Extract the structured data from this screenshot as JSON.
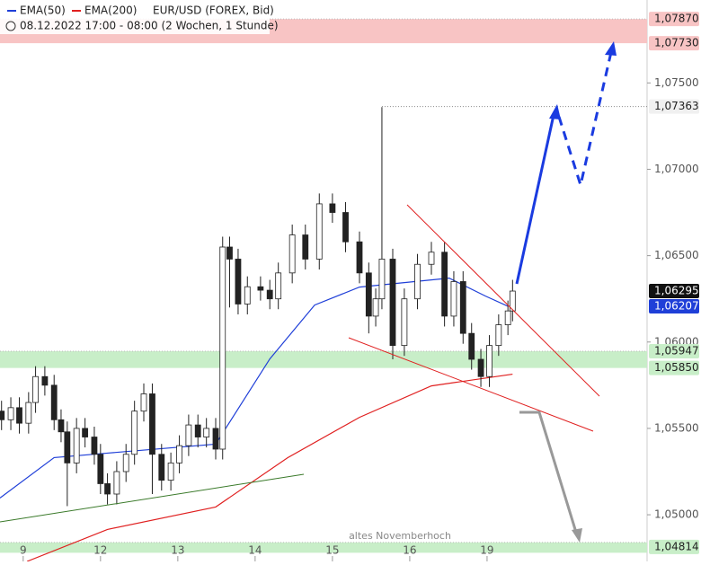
{
  "chart_data": {
    "type": "candlestick",
    "title": "EUR/USD (FOREX, Bid)",
    "subtitle": "08.12.2022 17:00 - 08:00 (2 Wochen, 1 Stunde)",
    "annotation": "altes Novemberhoch",
    "xlim": [
      -0.3,
      8.07
    ],
    "ylim": [
      1.0473,
      1.0798
    ],
    "xticks": [
      {
        "value": 0,
        "label": "9"
      },
      {
        "value": 1,
        "label": "12"
      },
      {
        "value": 2,
        "label": "13"
      },
      {
        "value": 3,
        "label": "14"
      },
      {
        "value": 4,
        "label": "15"
      },
      {
        "value": 5,
        "label": "16"
      },
      {
        "value": 6,
        "label": "19"
      }
    ],
    "yticks": [
      {
        "value": 1.05,
        "label": "1,05000"
      },
      {
        "value": 1.055,
        "label": "1,05500"
      },
      {
        "value": 1.06,
        "label": "1,06000"
      },
      {
        "value": 1.065,
        "label": "1,06500"
      },
      {
        "value": 1.07,
        "label": "1,07000"
      },
      {
        "value": 1.075,
        "label": "1,07500"
      }
    ],
    "up_color": "#ffffff",
    "down_color": "#222222",
    "candles": {
      "x": [
        -0.28,
        -0.16,
        -0.05,
        0.07,
        0.16,
        0.28,
        0.4,
        0.49,
        0.57,
        0.69,
        0.8,
        0.92,
        1.0,
        1.09,
        1.21,
        1.33,
        1.44,
        1.56,
        1.67,
        1.79,
        1.91,
        2.02,
        2.14,
        2.26,
        2.37,
        2.49,
        2.58,
        2.67,
        2.78,
        2.9,
        3.07,
        3.19,
        3.3,
        3.48,
        3.65,
        3.83,
        4.0,
        4.17,
        4.35,
        4.47,
        4.56,
        4.64,
        4.78,
        4.93,
        5.1,
        5.28,
        5.45,
        5.57,
        5.69,
        5.8,
        5.92,
        6.03,
        6.15,
        6.27,
        6.33
      ],
      "open": [
        1.056,
        1.0555,
        1.0562,
        1.0553,
        1.0565,
        1.058,
        1.0575,
        1.0555,
        1.0548,
        1.053,
        1.055,
        1.0545,
        1.0535,
        1.0518,
        1.0512,
        1.0525,
        1.0535,
        1.056,
        1.057,
        1.0535,
        1.052,
        1.053,
        1.054,
        1.0552,
        1.0545,
        1.055,
        1.0538,
        1.0655,
        1.0648,
        1.0622,
        1.0632,
        1.063,
        1.0625,
        1.064,
        1.0662,
        1.0648,
        1.068,
        1.0675,
        1.0658,
        1.064,
        1.0615,
        1.0625,
        1.0648,
        1.0598,
        1.0625,
        1.0645,
        1.0652,
        1.0615,
        1.0635,
        1.0605,
        1.059,
        1.058,
        1.0598,
        1.061,
        1.0618
      ],
      "high": [
        1.0566,
        1.0568,
        1.0568,
        1.0571,
        1.0586,
        1.0586,
        1.0581,
        1.0561,
        1.0554,
        1.0556,
        1.0556,
        1.0551,
        1.0541,
        1.0524,
        1.0531,
        1.0541,
        1.0566,
        1.0576,
        1.0576,
        1.0541,
        1.0536,
        1.0546,
        1.0558,
        1.0558,
        1.0556,
        1.0556,
        1.0661,
        1.0661,
        1.0654,
        1.0638,
        1.0638,
        1.0636,
        1.0646,
        1.0668,
        1.0668,
        1.0686,
        1.0686,
        1.0681,
        1.0664,
        1.0646,
        1.0631,
        1.0736,
        1.0654,
        1.0631,
        1.0651,
        1.0658,
        1.0658,
        1.0641,
        1.0641,
        1.0611,
        1.0596,
        1.0604,
        1.0616,
        1.0624,
        1.0636
      ],
      "low": [
        1.0549,
        1.0549,
        1.0547,
        1.0547,
        1.0559,
        1.0569,
        1.0549,
        1.0542,
        1.0505,
        1.0524,
        1.0539,
        1.0529,
        1.0512,
        1.0506,
        1.0506,
        1.0519,
        1.0529,
        1.0554,
        1.0512,
        1.0514,
        1.0514,
        1.0524,
        1.0534,
        1.0539,
        1.0539,
        1.0532,
        1.0532,
        1.062,
        1.0616,
        1.0616,
        1.0624,
        1.0619,
        1.0619,
        1.0634,
        1.0642,
        1.0642,
        1.0669,
        1.0652,
        1.0634,
        1.0605,
        1.0609,
        1.0619,
        1.059,
        1.0592,
        1.0619,
        1.0639,
        1.0609,
        1.0609,
        1.0599,
        1.0584,
        1.0574,
        1.0574,
        1.0592,
        1.0604,
        1.0612
      ],
      "close": [
        1.0555,
        1.0562,
        1.0553,
        1.0565,
        1.058,
        1.0575,
        1.0555,
        1.0548,
        1.053,
        1.055,
        1.0545,
        1.0535,
        1.0518,
        1.0512,
        1.0525,
        1.0535,
        1.056,
        1.057,
        1.0535,
        1.052,
        1.053,
        1.054,
        1.0552,
        1.0545,
        1.055,
        1.0538,
        1.0655,
        1.0648,
        1.0622,
        1.0632,
        1.063,
        1.0625,
        1.064,
        1.0662,
        1.0648,
        1.068,
        1.0675,
        1.0658,
        1.064,
        1.0615,
        1.0625,
        1.0648,
        1.0598,
        1.0625,
        1.0645,
        1.0652,
        1.0615,
        1.0635,
        1.0605,
        1.059,
        1.058,
        1.0598,
        1.061,
        1.0618,
        1.06295
      ]
    },
    "series": [
      {
        "name": "EMA(50)",
        "color": "#1f3fd8",
        "x": [
          -0.3,
          0.4,
          1.09,
          2.49,
          3.19,
          3.77,
          4.35,
          4.93,
          5.51,
          5.98,
          6.27
        ],
        "values": [
          1.05097,
          1.05331,
          1.05357,
          1.05409,
          1.05902,
          1.06214,
          1.06318,
          1.06344,
          1.0637,
          1.06266,
          1.06207
        ]
      },
      {
        "name": "EMA(200)",
        "color": "#e02020",
        "x": [
          0.05,
          1.09,
          2.49,
          3.42,
          4.35,
          5.28,
          6.33
        ],
        "values": [
          1.0473,
          1.04915,
          1.05045,
          1.0533,
          1.05564,
          1.05746,
          1.05814
        ]
      }
    ],
    "zones": [
      {
        "range": [
          1.0773,
          1.0787
        ],
        "color": "#f8c4c4"
      },
      {
        "range": [
          1.0585,
          1.05947
        ],
        "color": "#c8eec8"
      },
      {
        "range": [
          1.0478,
          1.0484
        ],
        "color": "#c8eec8"
      }
    ],
    "price_labels": [
      {
        "value": 1.0787,
        "label": "1,07870",
        "bg": "#f8c4c4",
        "fg": "#222222"
      },
      {
        "value": 1.0773,
        "label": "1,07730",
        "bg": "#f8c4c4",
        "fg": "#222222"
      },
      {
        "value": 1.07363,
        "label": "1,07363",
        "bg": "#f0f0f0",
        "fg": "#222222"
      },
      {
        "value": 1.06295,
        "label": "1,06295",
        "bg": "#111111",
        "fg": "#ffffff"
      },
      {
        "value": 1.06207,
        "label": "1,06207",
        "bg": "#1f3fd8",
        "fg": "#ffffff"
      },
      {
        "value": 1.05947,
        "label": "1,05947",
        "bg": "#c8eec8",
        "fg": "#222222"
      },
      {
        "value": 1.0585,
        "label": "1,05850",
        "bg": "#c8eec8",
        "fg": "#222222"
      },
      {
        "value": 1.04814,
        "label": "1,04814",
        "bg": "#c8eec8",
        "fg": "#222222"
      }
    ]
  }
}
